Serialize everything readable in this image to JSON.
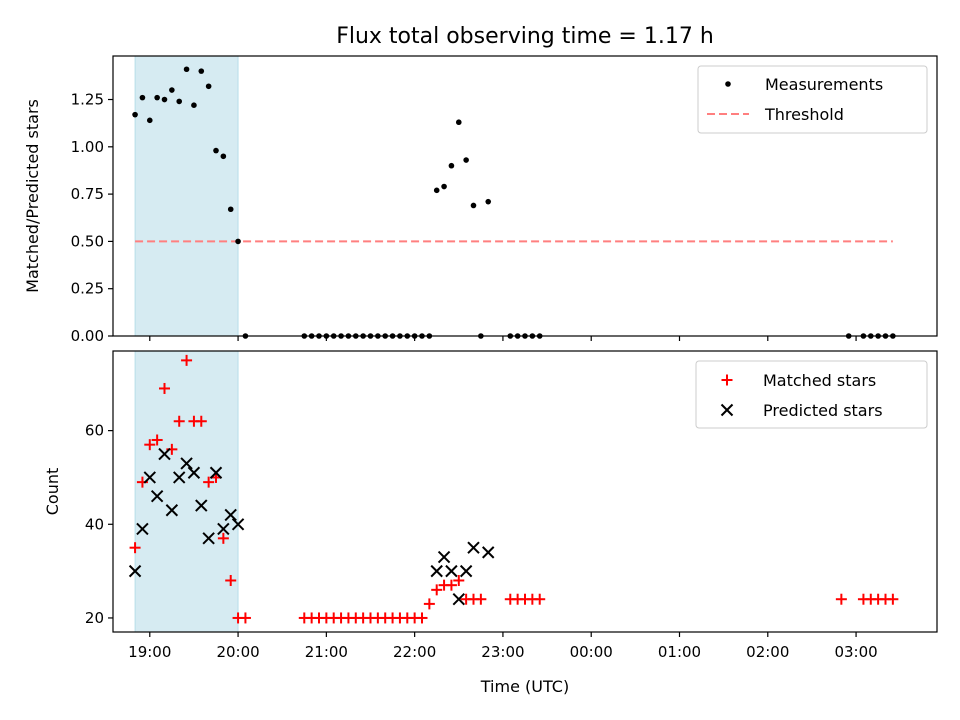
{
  "chart_data": [
    {
      "type": "scatter",
      "title": "Flux total observing time = 1.17 h",
      "xlabel": "",
      "ylabel": "Matched/Predicted stars",
      "xlim": [
        "18:35",
        "03:55"
      ],
      "ylim": [
        0.0,
        1.48
      ],
      "yticks": [
        "0.00",
        "0.25",
        "0.50",
        "0.75",
        "1.00",
        "1.25"
      ],
      "highlight_span": {
        "from": "18:50",
        "to": "20:00",
        "color": "#add8e6"
      },
      "legend": {
        "placement": "top-right",
        "entries": [
          "Measurements",
          "Threshold"
        ]
      },
      "threshold": {
        "name": "Threshold",
        "y": 0.5,
        "x_from": "18:50",
        "x_to": "03:25",
        "color": "#ff7f7f"
      },
      "series": [
        {
          "name": "Measurements",
          "color": "#000000",
          "points": [
            [
              "18:50",
              1.17
            ],
            [
              "18:55",
              1.26
            ],
            [
              "19:00",
              1.14
            ],
            [
              "19:05",
              1.26
            ],
            [
              "19:10",
              1.25
            ],
            [
              "19:15",
              1.3
            ],
            [
              "19:20",
              1.24
            ],
            [
              "19:25",
              1.41
            ],
            [
              "19:30",
              1.22
            ],
            [
              "19:35",
              1.4
            ],
            [
              "19:40",
              1.32
            ],
            [
              "19:45",
              0.98
            ],
            [
              "19:50",
              0.95
            ],
            [
              "19:55",
              0.67
            ],
            [
              "20:00",
              0.5
            ],
            [
              "20:05",
              0.0
            ],
            [
              "20:45",
              0.0
            ],
            [
              "20:50",
              0.0
            ],
            [
              "20:55",
              0.0
            ],
            [
              "21:00",
              0.0
            ],
            [
              "21:05",
              0.0
            ],
            [
              "21:10",
              0.0
            ],
            [
              "21:15",
              0.0
            ],
            [
              "21:20",
              0.0
            ],
            [
              "21:25",
              0.0
            ],
            [
              "21:30",
              0.0
            ],
            [
              "21:35",
              0.0
            ],
            [
              "21:40",
              0.0
            ],
            [
              "21:45",
              0.0
            ],
            [
              "21:50",
              0.0
            ],
            [
              "21:55",
              0.0
            ],
            [
              "22:00",
              0.0
            ],
            [
              "22:05",
              0.0
            ],
            [
              "22:10",
              0.0
            ],
            [
              "22:15",
              0.77
            ],
            [
              "22:20",
              0.79
            ],
            [
              "22:25",
              0.9
            ],
            [
              "22:30",
              1.13
            ],
            [
              "22:35",
              0.93
            ],
            [
              "22:40",
              0.69
            ],
            [
              "22:45",
              0.0
            ],
            [
              "22:50",
              0.71
            ],
            [
              "23:05",
              0.0
            ],
            [
              "23:10",
              0.0
            ],
            [
              "23:15",
              0.0
            ],
            [
              "23:20",
              0.0
            ],
            [
              "23:25",
              0.0
            ],
            [
              "02:55",
              0.0
            ],
            [
              "03:05",
              0.0
            ],
            [
              "03:10",
              0.0
            ],
            [
              "03:15",
              0.0
            ],
            [
              "03:20",
              0.0
            ],
            [
              "03:25",
              0.0
            ]
          ]
        }
      ]
    },
    {
      "type": "scatter",
      "title": "",
      "xlabel": "Time (UTC)",
      "ylabel": "Count",
      "xlim": [
        "18:35",
        "03:55"
      ],
      "ylim": [
        17,
        77
      ],
      "yticks": [
        "20",
        "40",
        "60"
      ],
      "xticks": [
        "19:00",
        "20:00",
        "21:00",
        "22:00",
        "23:00",
        "00:00",
        "01:00",
        "02:00",
        "03:00"
      ],
      "highlight_span": {
        "from": "18:50",
        "to": "20:00",
        "color": "#add8e6"
      },
      "legend": {
        "placement": "top-right",
        "entries": [
          "Matched stars",
          "Predicted stars"
        ]
      },
      "series": [
        {
          "name": "Matched stars",
          "marker": "plus",
          "color": "#ff0000",
          "points": [
            [
              "18:50",
              35
            ],
            [
              "18:55",
              49
            ],
            [
              "19:00",
              57
            ],
            [
              "19:05",
              58
            ],
            [
              "19:10",
              69
            ],
            [
              "19:15",
              56
            ],
            [
              "19:20",
              62
            ],
            [
              "19:25",
              75
            ],
            [
              "19:30",
              62
            ],
            [
              "19:35",
              62
            ],
            [
              "19:40",
              49
            ],
            [
              "19:45",
              50
            ],
            [
              "19:50",
              37
            ],
            [
              "19:55",
              28
            ],
            [
              "20:00",
              20
            ],
            [
              "20:05",
              20
            ],
            [
              "20:45",
              20
            ],
            [
              "20:50",
              20
            ],
            [
              "20:55",
              20
            ],
            [
              "21:00",
              20
            ],
            [
              "21:05",
              20
            ],
            [
              "21:10",
              20
            ],
            [
              "21:15",
              20
            ],
            [
              "21:20",
              20
            ],
            [
              "21:25",
              20
            ],
            [
              "21:30",
              20
            ],
            [
              "21:35",
              20
            ],
            [
              "21:40",
              20
            ],
            [
              "21:45",
              20
            ],
            [
              "21:50",
              20
            ],
            [
              "21:55",
              20
            ],
            [
              "22:00",
              20
            ],
            [
              "22:05",
              20
            ],
            [
              "22:10",
              23
            ],
            [
              "22:15",
              26
            ],
            [
              "22:20",
              27
            ],
            [
              "22:25",
              27
            ],
            [
              "22:30",
              28
            ],
            [
              "22:35",
              24
            ],
            [
              "22:40",
              24
            ],
            [
              "22:45",
              24
            ],
            [
              "23:05",
              24
            ],
            [
              "23:10",
              24
            ],
            [
              "23:15",
              24
            ],
            [
              "23:20",
              24
            ],
            [
              "23:25",
              24
            ],
            [
              "02:50",
              24
            ],
            [
              "03:05",
              24
            ],
            [
              "03:10",
              24
            ],
            [
              "03:15",
              24
            ],
            [
              "03:20",
              24
            ],
            [
              "03:25",
              24
            ]
          ]
        },
        {
          "name": "Predicted stars",
          "marker": "x",
          "color": "#000000",
          "points": [
            [
              "18:50",
              30
            ],
            [
              "18:55",
              39
            ],
            [
              "19:00",
              50
            ],
            [
              "19:05",
              46
            ],
            [
              "19:10",
              55
            ],
            [
              "19:15",
              43
            ],
            [
              "19:20",
              50
            ],
            [
              "19:25",
              53
            ],
            [
              "19:30",
              51
            ],
            [
              "19:35",
              44
            ],
            [
              "19:40",
              37
            ],
            [
              "19:45",
              51
            ],
            [
              "19:50",
              39
            ],
            [
              "19:55",
              42
            ],
            [
              "20:00",
              40
            ],
            [
              "22:15",
              30
            ],
            [
              "22:20",
              33
            ],
            [
              "22:25",
              30
            ],
            [
              "22:30",
              24
            ],
            [
              "22:35",
              30
            ],
            [
              "22:40",
              35
            ],
            [
              "22:50",
              34
            ]
          ]
        }
      ]
    }
  ]
}
